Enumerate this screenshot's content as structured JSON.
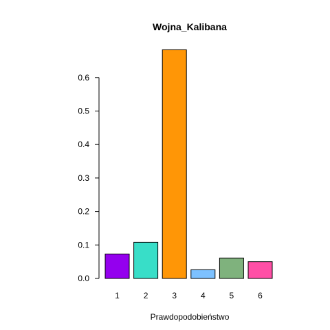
{
  "chart_data": {
    "type": "bar",
    "title": "Wojna_Kalibana",
    "xlabel": "Prawdopodobieństwo",
    "ylabel": "",
    "categories": [
      "1",
      "2",
      "3",
      "4",
      "5",
      "6"
    ],
    "values": [
      0.073,
      0.108,
      0.683,
      0.026,
      0.061,
      0.05
    ],
    "colors": [
      "#9400EE",
      "#38DEC8",
      "#FF9606",
      "#7DC1FF",
      "#7FB27D",
      "#FF4FA6"
    ],
    "ylim": [
      0,
      0.7
    ],
    "yticks": [
      0.0,
      0.1,
      0.2,
      0.3,
      0.4,
      0.5,
      0.6
    ],
    "ytick_labels": [
      "0.0",
      "0.1",
      "0.2",
      "0.3",
      "0.4",
      "0.5",
      "0.6"
    ],
    "grid": false,
    "legend": "none"
  }
}
